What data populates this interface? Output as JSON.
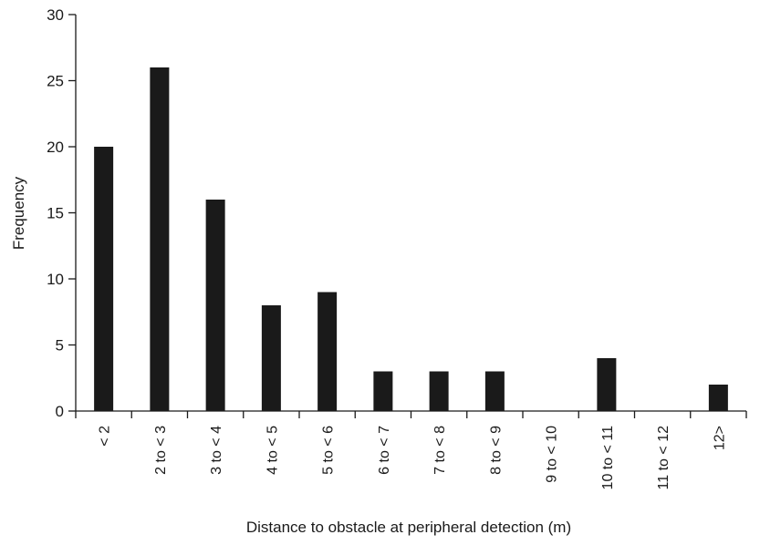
{
  "chart_data": {
    "type": "bar",
    "title": "",
    "xlabel": "Distance to obstacle at peripheral detection (m)",
    "ylabel": "Frequency",
    "categories": [
      "< 2",
      "2 to < 3",
      "3 to < 4",
      "4 to < 5",
      "5 to < 6",
      "6 to < 7",
      "7 to < 8",
      "8 to < 9",
      "9 to < 10",
      "10 to < 11",
      "11 to < 12",
      "12>"
    ],
    "values": [
      20,
      26,
      16,
      8,
      9,
      3,
      3,
      3,
      0,
      4,
      0,
      2
    ],
    "ylim": [
      0,
      30
    ],
    "yticks": [
      0,
      5,
      10,
      15,
      20,
      25,
      30
    ],
    "grid": false,
    "legend": "none",
    "bar_color": "#1a1a1a",
    "axis_color": "#1a1a1a"
  }
}
